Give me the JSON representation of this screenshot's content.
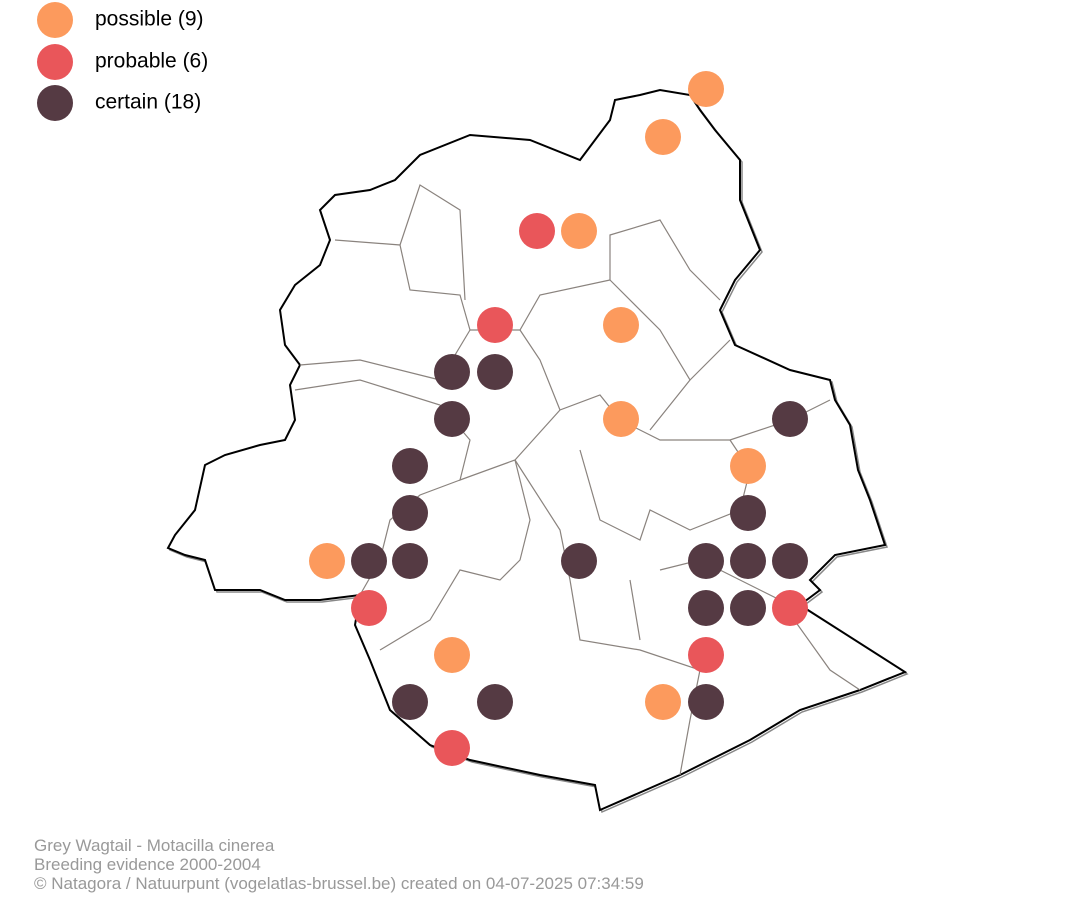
{
  "legend": {
    "items": [
      "possible (9)",
      "probable (6)",
      "certain (18)"
    ]
  },
  "caption": {
    "lines": [
      "Grey Wagtail - Motacilla cinerea",
      "Breeding evidence 2000-2004",
      "© Natagora / Natuurpunt (vogelatlas-brussel.be) created on 04-07-2025 07:34:59"
    ]
  }
}
